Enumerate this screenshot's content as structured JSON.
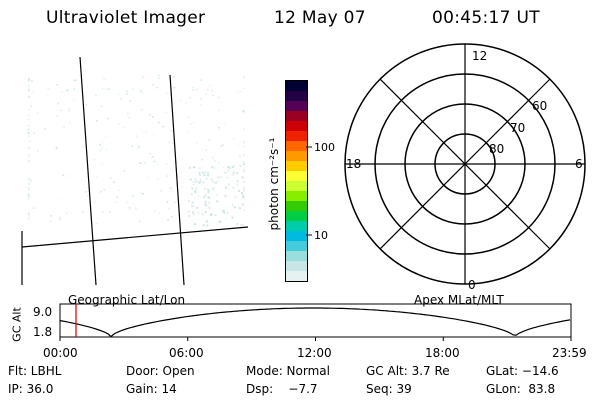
{
  "header": {
    "title": "Ultraviolet Imager",
    "date": "12 May 07",
    "time": "00:45:17 UT"
  },
  "colorbar": {
    "unit_label": "photon cm⁻²s⁻¹",
    "ticks": [
      "100",
      "10"
    ],
    "colors": [
      "#000033",
      "#220044",
      "#550055",
      "#990022",
      "#cc0000",
      "#ee2200",
      "#ff6600",
      "#ff9900",
      "#ffcc00",
      "#ffff33",
      "#ccff33",
      "#88ee00",
      "#33cc00",
      "#00cc44",
      "#00ccaa",
      "#00bbdd",
      "#44ccdd",
      "#99dddd",
      "#c8e6e6",
      "#e6f2f2"
    ]
  },
  "polar_plot": {
    "mlt_labels": {
      "top": "12",
      "right": "6",
      "bottom": "0",
      "left": "18"
    },
    "lat_labels": [
      "60",
      "70",
      "80"
    ]
  },
  "altitude_plot": {
    "ylabel": "GC Alt",
    "yticks": [
      "9.0",
      "1.8"
    ],
    "left_label": "Geographic Lat/Lon",
    "right_label": "Apex MLat/MLT",
    "xticks": [
      "00:00",
      "06:00",
      "12:00",
      "18:00",
      "23:59"
    ]
  },
  "info": {
    "row1": {
      "flt": "Flt: LBHL",
      "door": "Door: Open",
      "mode": "Mode: Normal",
      "gcalt": "GC Alt: 3.7 Re",
      "glat": "GLat: −14.6"
    },
    "row2": {
      "ip": "IP: 36.0",
      "gain": "Gain: 14",
      "dsp": "Dsp:    −7.7",
      "seq": "Seq: 39",
      "glon": "GLon:  83.8"
    }
  }
}
